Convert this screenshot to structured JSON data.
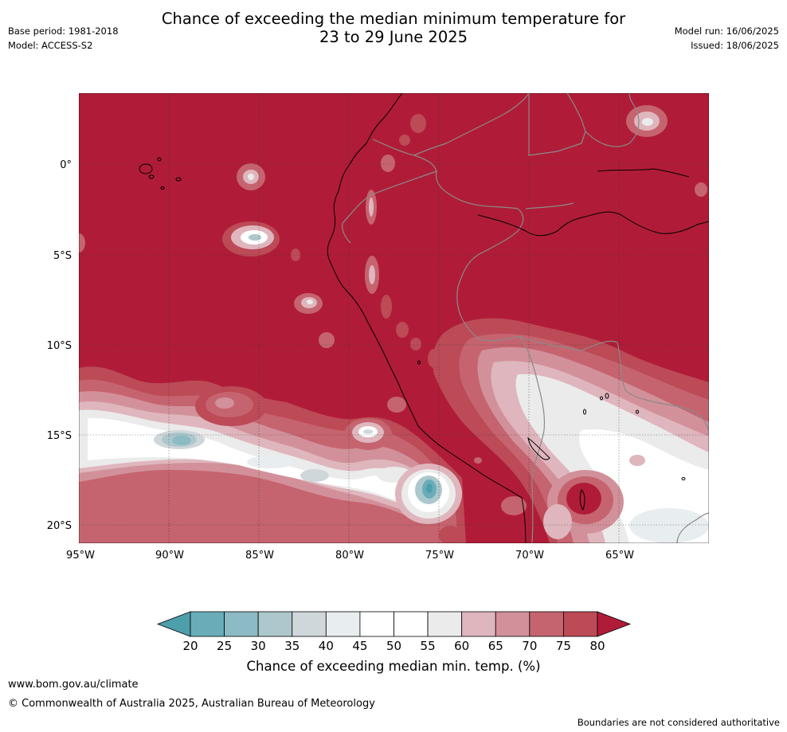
{
  "header": {
    "title_line1": "Chance of exceeding the median minimum temperature for",
    "title_line2": "23 to 29 June 2025",
    "base_period": "Base period: 1981-2018",
    "model": "Model: ACCESS-S2",
    "model_run": "Model run: 16/06/2025",
    "issued": "Issued: 18/06/2025"
  },
  "map": {
    "lat_labels": [
      "0°",
      "5°S",
      "10°S",
      "15°S",
      "20°S"
    ],
    "lon_labels": [
      "95°W",
      "90°W",
      "85°W",
      "80°W",
      "75°W",
      "70°W",
      "65°W"
    ],
    "background_category": "80+",
    "colors": {
      "ocean_land_fill": "#b01c37",
      "coast": "#000000",
      "border": "#808080",
      "grid": "#444444"
    }
  },
  "colorbar": {
    "ticks": [
      "20",
      "25",
      "30",
      "35",
      "40",
      "45",
      "50",
      "55",
      "60",
      "65",
      "70",
      "75",
      "80"
    ],
    "colors": [
      "#4e9eac",
      "#6aadb9",
      "#8cbac5",
      "#adc8cd",
      "#d0d7da",
      "#e8edf0",
      "#ffffff",
      "#ffffff",
      "#ebebeb",
      "#dfb6bd",
      "#d2919a",
      "#c5646f",
      "#bc4a57",
      "#b01c37"
    ],
    "label": "Chance of exceeding median min. temp. (%)"
  },
  "footer": {
    "url": "www.bom.gov.au/climate",
    "copyright": "© Commonwealth of Australia 2025, Australian Bureau of Meteorology",
    "disclaimer": "Boundaries are not considered authoritative"
  }
}
